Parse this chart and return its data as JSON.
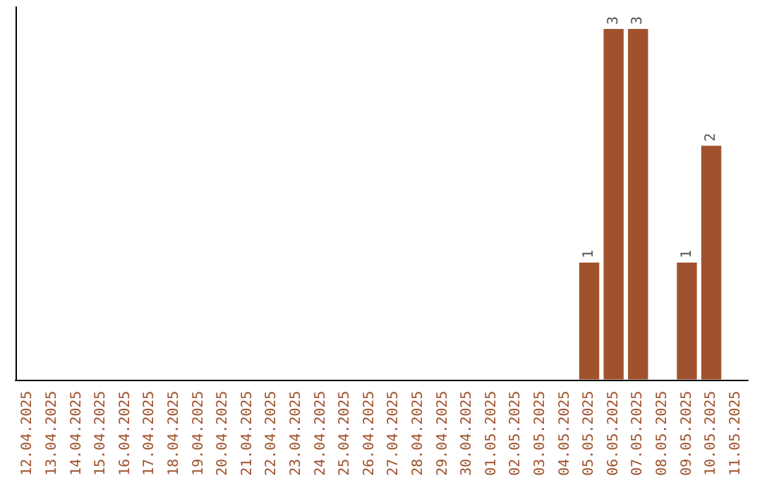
{
  "chart_data": {
    "type": "bar",
    "categories": [
      "12.04.2025",
      "13.04.2025",
      "14.04.2025",
      "15.04.2025",
      "16.04.2025",
      "17.04.2025",
      "18.04.2025",
      "19.04.2025",
      "20.04.2025",
      "21.04.2025",
      "22.04.2025",
      "23.04.2025",
      "24.04.2025",
      "25.04.2025",
      "26.04.2025",
      "27.04.2025",
      "28.04.2025",
      "29.04.2025",
      "30.04.2025",
      "01.05.2025",
      "02.05.2025",
      "03.05.2025",
      "04.05.2025",
      "05.05.2025",
      "06.05.2025",
      "07.05.2025",
      "08.05.2025",
      "09.05.2025",
      "10.05.2025",
      "11.05.2025"
    ],
    "values": [
      null,
      null,
      null,
      null,
      null,
      null,
      null,
      null,
      null,
      null,
      null,
      null,
      null,
      null,
      null,
      null,
      null,
      null,
      null,
      null,
      null,
      null,
      null,
      1,
      3,
      3,
      null,
      1,
      2,
      null
    ],
    "data_labels": true,
    "color": "#a0522d",
    "tick_labels": "x",
    "grid": false
  }
}
